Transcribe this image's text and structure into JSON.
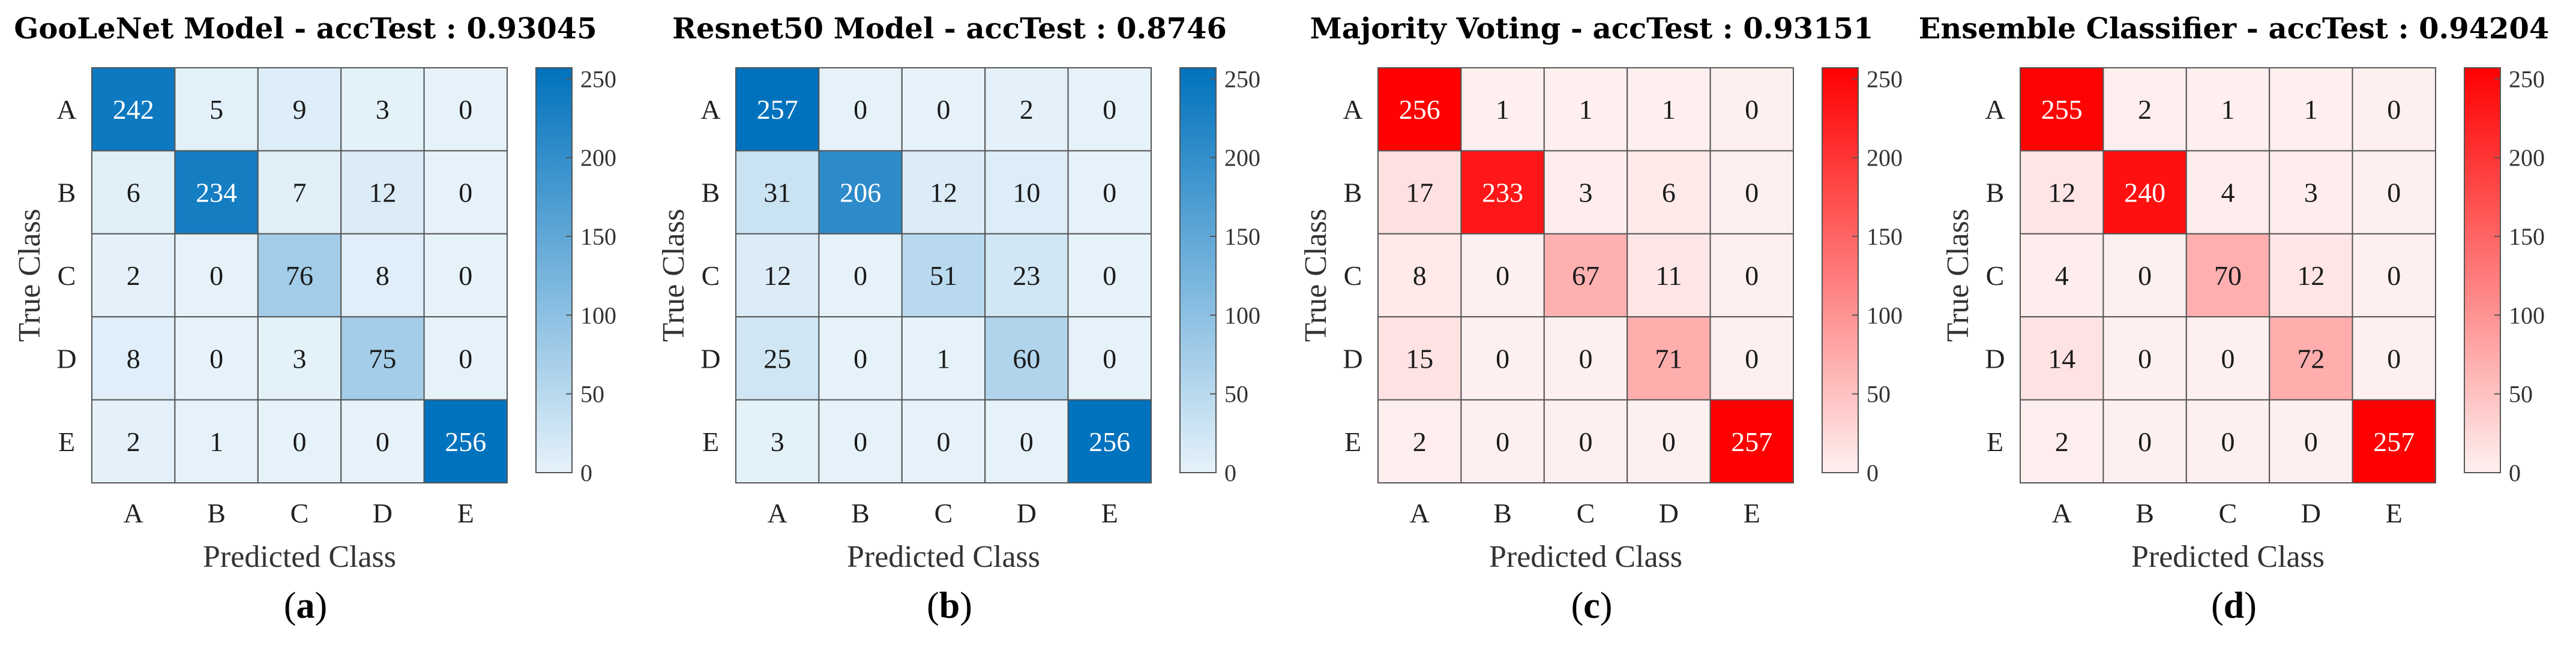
{
  "chart_data": [
    {
      "type": "heatmap",
      "title": "GooLeNet Model - accTest : 0.93045",
      "xlabel": "Predicted Class",
      "ylabel": "True Class",
      "classes": [
        "A",
        "B",
        "C",
        "D",
        "E"
      ],
      "matrix": [
        [
          242,
          5,
          9,
          3,
          0
        ],
        [
          6,
          234,
          7,
          12,
          0
        ],
        [
          2,
          0,
          76,
          8,
          0
        ],
        [
          8,
          0,
          3,
          75,
          0
        ],
        [
          2,
          1,
          0,
          0,
          256
        ]
      ],
      "colorscale": {
        "low": "#e6f2fa",
        "high": "#0072bd"
      },
      "colorbar": {
        "range": [
          0,
          257
        ],
        "ticks": [
          0,
          50,
          100,
          150,
          200,
          250
        ]
      },
      "caption": {
        "open": "(",
        "letter": "a",
        "close": ")"
      }
    },
    {
      "type": "heatmap",
      "title": "Resnet50 Model - accTest : 0.8746",
      "xlabel": "Predicted Class",
      "ylabel": "True Class",
      "classes": [
        "A",
        "B",
        "C",
        "D",
        "E"
      ],
      "matrix": [
        [
          257,
          0,
          0,
          2,
          0
        ],
        [
          31,
          206,
          12,
          10,
          0
        ],
        [
          12,
          0,
          51,
          23,
          0
        ],
        [
          25,
          0,
          1,
          60,
          0
        ],
        [
          3,
          0,
          0,
          0,
          256
        ]
      ],
      "colorscale": {
        "low": "#e6f2fa",
        "high": "#0072bd"
      },
      "colorbar": {
        "range": [
          0,
          257
        ],
        "ticks": [
          0,
          50,
          100,
          150,
          200,
          250
        ]
      },
      "caption": {
        "open": "(",
        "letter": "b",
        "close": ")"
      }
    },
    {
      "type": "heatmap",
      "title": "Majority Voting - accTest : 0.93151",
      "xlabel": "Predicted Class",
      "ylabel": "True Class",
      "classes": [
        "A",
        "B",
        "C",
        "D",
        "E"
      ],
      "matrix": [
        [
          256,
          1,
          1,
          1,
          0
        ],
        [
          17,
          233,
          3,
          6,
          0
        ],
        [
          8,
          0,
          67,
          11,
          0
        ],
        [
          15,
          0,
          0,
          71,
          0
        ],
        [
          2,
          0,
          0,
          0,
          257
        ]
      ],
      "colorscale": {
        "low": "#fff0f0",
        "high": "#ff0000"
      },
      "colorbar": {
        "range": [
          0,
          257
        ],
        "ticks": [
          0,
          50,
          100,
          150,
          200,
          250
        ]
      },
      "caption": {
        "open": "(",
        "letter": "c",
        "close": ")"
      }
    },
    {
      "type": "heatmap",
      "title": "Ensemble Classifier - accTest : 0.94204",
      "xlabel": "Predicted Class",
      "ylabel": "True Class",
      "classes": [
        "A",
        "B",
        "C",
        "D",
        "E"
      ],
      "matrix": [
        [
          255,
          2,
          1,
          1,
          0
        ],
        [
          12,
          240,
          4,
          3,
          0
        ],
        [
          4,
          0,
          70,
          12,
          0
        ],
        [
          14,
          0,
          0,
          72,
          0
        ],
        [
          2,
          0,
          0,
          0,
          257
        ]
      ],
      "colorscale": {
        "low": "#fff0f0",
        "high": "#ff0000"
      },
      "colorbar": {
        "range": [
          0,
          257
        ],
        "ticks": [
          0,
          50,
          100,
          150,
          200,
          250
        ]
      },
      "caption": {
        "open": "(",
        "letter": "d",
        "close": ")"
      }
    }
  ]
}
